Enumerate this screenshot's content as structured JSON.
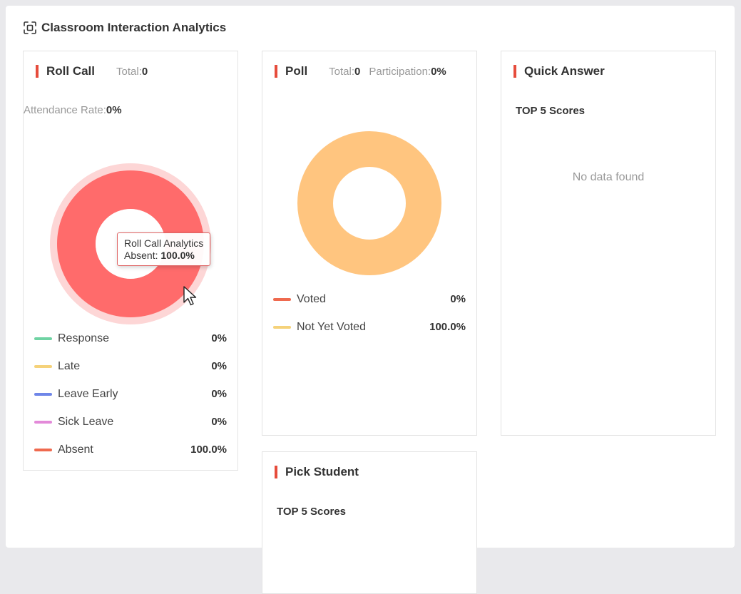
{
  "header": {
    "title": "Classroom Interaction Analytics",
    "icon": "expand-icon"
  },
  "roll_call": {
    "title": "Roll Call",
    "total_label": "Total:",
    "total_value": "0",
    "attendance_label": "Attendance Rate:",
    "attendance_value": "0%",
    "tooltip": {
      "title": "Roll Call Analytics",
      "label": "Absent:",
      "value": "100.0%"
    },
    "legend": [
      {
        "label": "Response",
        "value": "0%",
        "color": "#6fd3a3"
      },
      {
        "label": "Late",
        "value": "0%",
        "color": "#f5d27a"
      },
      {
        "label": "Leave Early",
        "value": "0%",
        "color": "#6f86e8"
      },
      {
        "label": "Sick Leave",
        "value": "0%",
        "color": "#e38ad9"
      },
      {
        "label": "Absent",
        "value": "100.0%",
        "color": "#ef6a4f"
      }
    ],
    "chart_color": "#ff6b6b",
    "chart_halo_color": "#fdd6d6"
  },
  "poll": {
    "title": "Poll",
    "total_label": "Total:",
    "total_value": "0",
    "participation_label": "Participation:",
    "participation_value": "0%",
    "legend": [
      {
        "label": "Voted",
        "value": "0%",
        "color": "#ef6a4f"
      },
      {
        "label": "Not Yet Voted",
        "value": "100.0%",
        "color": "#f5d27a"
      }
    ],
    "chart_color": "#ffc57f"
  },
  "quick_answer": {
    "title": "Quick Answer",
    "subtitle": "TOP 5 Scores",
    "empty_text": "No data found"
  },
  "pick_student": {
    "title": "Pick Student",
    "subtitle": "TOP 5 Scores"
  }
}
